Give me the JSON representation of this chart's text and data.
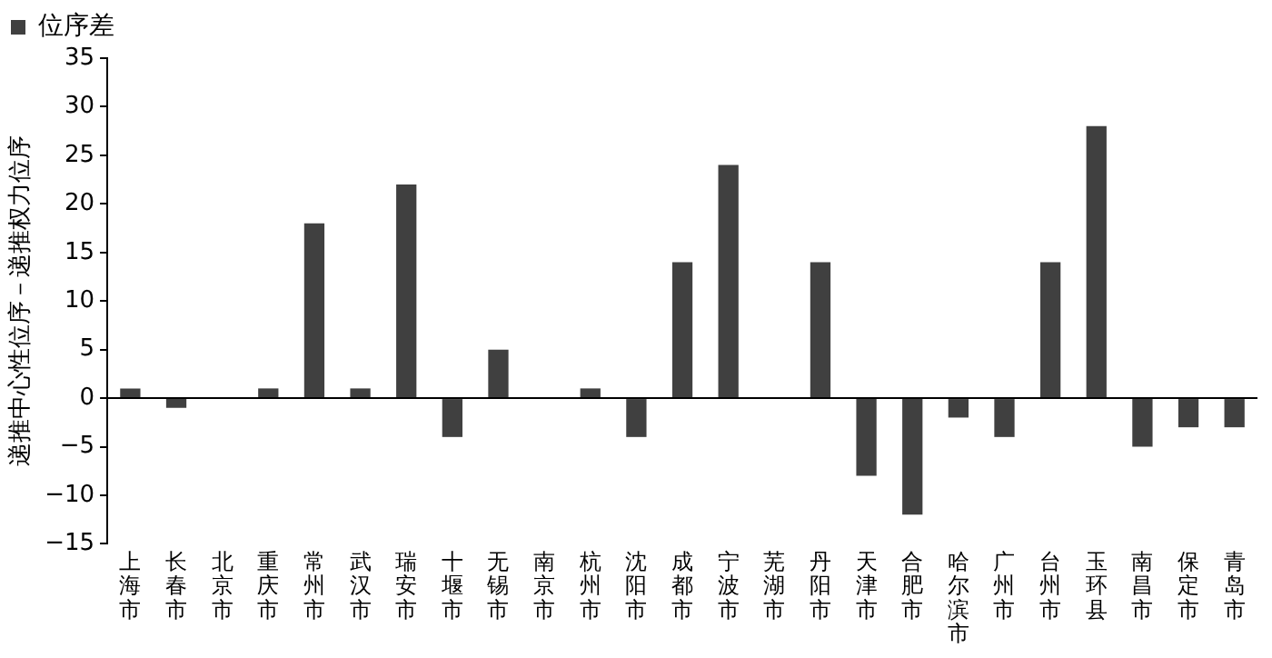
{
  "chart_data": {
    "type": "bar",
    "ylabel": "递推中心性位序－递推权力位序",
    "categories": [
      "上海市",
      "长春市",
      "北京市",
      "重庆市",
      "常州市",
      "武汉市",
      "瑞安市",
      "十堰市",
      "无锡市",
      "南京市",
      "杭州市",
      "沈阳市",
      "成都市",
      "宁波市",
      "芜湖市",
      "丹阳市",
      "天津市",
      "合肥市",
      "哈尔滨市",
      "广州市",
      "台州市",
      "玉环县",
      "南昌市",
      "保定市",
      "青岛市"
    ],
    "series": [
      {
        "name": "位序差",
        "color": "#404040",
        "values": [
          1,
          -1,
          0,
          1,
          18,
          1,
          22,
          -4,
          5,
          0,
          1,
          -4,
          14,
          24,
          0,
          14,
          -8,
          -12,
          -2,
          -4,
          14,
          28,
          -5,
          -3,
          -3
        ]
      }
    ],
    "ylim": [
      -15,
      35
    ],
    "yticks": [
      -15,
      -10,
      -5,
      0,
      5,
      10,
      15,
      20,
      25,
      30,
      35
    ],
    "grid": false,
    "ref_lines": [
      {
        "axis": "y",
        "value": 0,
        "color": "#000000"
      }
    ],
    "legend": "top left"
  }
}
